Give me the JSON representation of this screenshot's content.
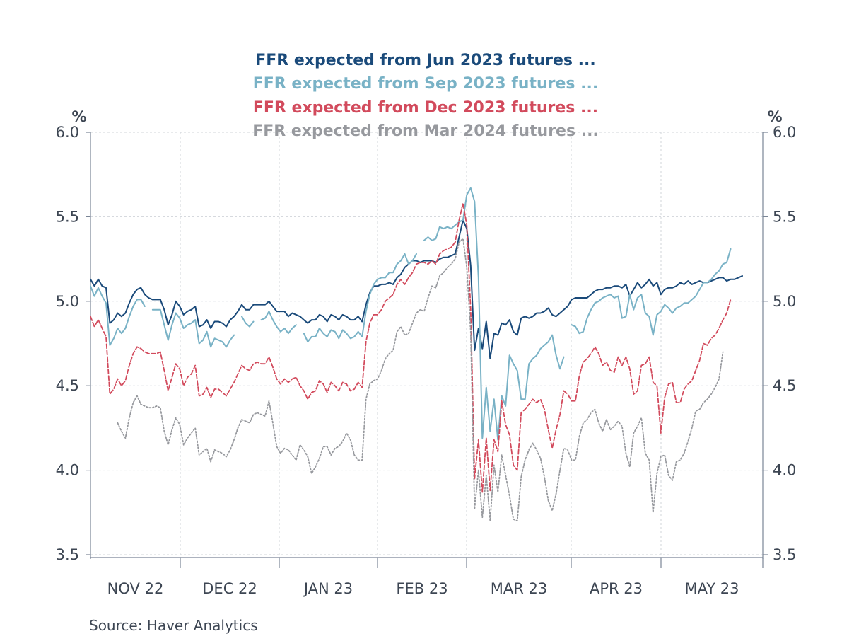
{
  "chart_data": {
    "type": "line",
    "y_unit_left": "%",
    "y_unit_right": "%",
    "ylim": [
      3.5,
      6.0
    ],
    "yticks": [
      "6.0",
      "5.5",
      "5.0",
      "4.5",
      "4.0",
      "3.5"
    ],
    "ytick_values": [
      6.0,
      5.5,
      5.0,
      4.5,
      4.0,
      3.5
    ],
    "grid": true,
    "legend_position": "top-center",
    "months": [
      "NOV 22",
      "DEC 22",
      "JAN 23",
      "FEB 23",
      "MAR 23",
      "APR 23",
      "MAY 23"
    ],
    "source": "Source:  Haver Analytics",
    "series": [
      {
        "name": "FFR expected from Jun 2023 futures ...",
        "color": "#1a4a7a",
        "dash": "solid",
        "values": [
          5.13,
          5.09,
          5.13,
          5.09,
          5.08,
          4.87,
          4.89,
          4.93,
          4.91,
          4.93,
          4.99,
          5.04,
          5.07,
          5.08,
          5.04,
          5.02,
          5.01,
          5.01,
          5.01,
          4.95,
          4.86,
          4.92,
          5.0,
          4.97,
          4.92,
          4.94,
          4.95,
          4.97,
          4.85,
          4.86,
          4.89,
          4.84,
          4.88,
          4.88,
          4.87,
          4.85,
          4.89,
          4.91,
          4.94,
          4.98,
          4.95,
          4.95,
          4.98,
          4.98,
          4.98,
          4.98,
          5.0,
          4.97,
          4.94,
          4.94,
          4.94,
          4.91,
          4.93,
          4.92,
          4.91,
          4.89,
          4.87,
          4.89,
          4.89,
          4.92,
          4.91,
          4.88,
          4.92,
          4.91,
          4.89,
          4.92,
          4.91,
          4.89,
          4.89,
          4.91,
          4.88,
          4.98,
          5.05,
          5.09,
          5.09,
          5.1,
          5.1,
          5.11,
          5.1,
          5.14,
          5.16,
          5.2,
          5.22,
          5.24,
          5.24,
          5.23,
          5.24,
          5.24,
          5.24,
          5.23,
          5.25,
          5.26,
          5.26,
          5.27,
          5.28,
          5.38,
          5.48,
          5.43,
          5.21,
          4.71,
          4.84,
          4.72,
          4.88,
          4.66,
          4.81,
          4.8,
          4.87,
          4.86,
          4.89,
          4.82,
          4.8,
          4.9,
          4.91,
          4.9,
          4.91,
          4.93,
          4.93,
          4.94,
          4.96,
          4.92,
          4.91,
          4.93,
          4.95,
          4.97,
          5.01,
          5.02,
          5.02,
          5.02,
          5.02,
          5.04,
          5.06,
          5.07,
          5.07,
          5.08,
          5.08,
          5.09,
          5.09,
          5.08,
          5.1,
          5.03,
          5.07,
          5.11,
          5.08,
          5.1,
          5.13,
          5.09,
          5.11,
          5.04,
          5.07,
          5.08,
          5.08,
          5.09,
          5.11,
          5.1,
          5.12,
          5.1,
          5.11,
          5.12,
          5.11,
          5.11,
          5.12,
          5.13,
          5.14,
          5.14,
          5.12,
          5.13,
          5.13,
          5.14,
          5.15
        ]
      },
      {
        "name": "FFR expected from Sep 2023 futures ...",
        "color": "#79b2c6",
        "dash": "solid",
        "values": [
          5.09,
          5.03,
          5.08,
          5.03,
          4.99,
          4.74,
          4.78,
          4.84,
          4.81,
          4.84,
          4.91,
          4.97,
          5.01,
          5.01,
          4.97,
          null,
          4.95,
          4.95,
          4.95,
          4.86,
          4.77,
          4.86,
          4.93,
          4.9,
          4.84,
          4.86,
          4.87,
          4.89,
          4.75,
          4.77,
          4.82,
          4.73,
          4.78,
          4.77,
          4.76,
          4.73,
          4.77,
          4.8,
          null,
          4.91,
          4.87,
          4.85,
          4.88,
          null,
          4.89,
          4.9,
          4.94,
          4.89,
          4.85,
          4.82,
          4.84,
          4.81,
          4.84,
          4.86,
          null,
          4.81,
          4.76,
          4.79,
          4.79,
          4.84,
          4.81,
          4.79,
          4.83,
          4.82,
          4.78,
          4.83,
          4.81,
          4.78,
          4.79,
          4.82,
          4.79,
          4.94,
          5.04,
          5.1,
          5.13,
          5.14,
          5.14,
          5.17,
          5.17,
          5.22,
          5.24,
          5.28,
          5.22,
          5.24,
          5.28,
          null,
          5.36,
          5.38,
          5.36,
          5.37,
          5.44,
          5.43,
          5.44,
          5.43,
          5.45,
          5.47,
          5.48,
          5.63,
          5.67,
          5.59,
          5.14,
          4.19,
          4.49,
          4.23,
          4.42,
          4.18,
          4.44,
          4.38,
          4.68,
          4.63,
          4.59,
          4.42,
          4.42,
          4.63,
          4.66,
          4.68,
          4.72,
          4.74,
          4.76,
          4.8,
          4.68,
          4.6,
          4.67,
          null,
          4.86,
          4.85,
          4.81,
          4.82,
          4.9,
          4.95,
          4.99,
          5.0,
          5.02,
          5.03,
          5.04,
          5.02,
          5.03,
          4.9,
          4.91,
          5.04,
          4.95,
          5.02,
          5.04,
          4.93,
          4.91,
          4.8,
          4.92,
          4.94,
          4.98,
          4.96,
          4.93,
          4.96,
          4.97,
          4.99,
          4.99,
          5.01,
          5.03,
          5.07,
          5.11,
          5.11,
          5.13,
          5.16,
          5.18,
          5.22,
          5.23,
          5.31
        ]
      },
      {
        "name": "FFR expected from Dec 2023 futures ...",
        "color": "#d24a5c",
        "dash": "dashed",
        "values": [
          4.91,
          4.85,
          4.89,
          4.84,
          4.79,
          4.45,
          4.48,
          4.54,
          4.5,
          4.53,
          4.62,
          4.69,
          4.73,
          4.72,
          4.7,
          4.69,
          4.69,
          4.69,
          4.7,
          4.59,
          4.47,
          4.55,
          4.63,
          4.6,
          4.5,
          4.55,
          4.57,
          4.62,
          4.44,
          4.45,
          4.49,
          4.43,
          4.48,
          4.48,
          4.46,
          4.44,
          4.48,
          4.52,
          4.57,
          4.62,
          4.6,
          4.59,
          4.63,
          4.64,
          4.63,
          4.63,
          4.67,
          4.61,
          4.54,
          4.51,
          4.54,
          4.52,
          4.54,
          4.55,
          4.5,
          4.47,
          4.42,
          4.46,
          4.47,
          4.53,
          4.51,
          4.46,
          4.52,
          4.5,
          4.47,
          4.52,
          4.51,
          4.47,
          4.48,
          4.52,
          4.49,
          4.76,
          4.87,
          4.92,
          4.92,
          4.95,
          5.0,
          5.02,
          5.04,
          5.1,
          5.13,
          5.1,
          5.14,
          5.17,
          5.22,
          5.23,
          5.23,
          5.22,
          5.24,
          5.22,
          5.28,
          5.3,
          5.31,
          5.32,
          5.35,
          5.48,
          5.58,
          5.45,
          4.95,
          3.95,
          4.18,
          3.87,
          4.19,
          3.88,
          4.18,
          4.11,
          4.41,
          4.27,
          4.21,
          4.03,
          4.0,
          4.34,
          4.36,
          4.39,
          4.42,
          4.4,
          4.42,
          4.36,
          4.24,
          4.13,
          4.24,
          4.33,
          4.47,
          4.45,
          4.41,
          4.41,
          4.56,
          4.64,
          4.66,
          4.69,
          4.73,
          4.69,
          4.62,
          4.64,
          4.59,
          4.58,
          4.67,
          4.62,
          4.67,
          4.6,
          4.45,
          4.47,
          4.62,
          4.63,
          4.67,
          4.52,
          4.5,
          4.22,
          4.43,
          4.51,
          4.52,
          4.4,
          4.4,
          4.48,
          4.51,
          4.53,
          4.59,
          4.65,
          4.75,
          4.74,
          4.78,
          4.8,
          4.84,
          4.89,
          4.93,
          5.01
        ]
      },
      {
        "name": "FFR expected from Mar 2024 futures ...",
        "color": "#97999e",
        "dash": "dotted",
        "values": [
          null,
          null,
          null,
          null,
          null,
          null,
          null,
          4.28,
          4.23,
          4.19,
          4.31,
          4.4,
          4.44,
          4.39,
          4.38,
          4.37,
          4.37,
          4.38,
          4.37,
          4.23,
          4.15,
          4.24,
          4.31,
          4.27,
          4.15,
          4.19,
          4.22,
          4.25,
          4.09,
          4.11,
          4.13,
          4.05,
          4.12,
          4.11,
          4.1,
          4.08,
          4.12,
          4.18,
          4.25,
          4.3,
          4.29,
          4.28,
          4.33,
          4.34,
          4.33,
          4.32,
          4.41,
          4.28,
          4.14,
          4.1,
          4.13,
          4.12,
          4.09,
          4.06,
          4.15,
          4.12,
          4.08,
          3.98,
          4.02,
          4.07,
          4.14,
          4.14,
          4.09,
          4.13,
          4.14,
          4.17,
          4.22,
          4.18,
          4.09,
          4.06,
          4.06,
          4.42,
          4.51,
          4.53,
          4.54,
          4.59,
          4.66,
          4.69,
          4.71,
          4.82,
          4.85,
          4.8,
          4.81,
          4.87,
          4.93,
          4.95,
          4.94,
          5.02,
          5.09,
          5.08,
          5.15,
          5.17,
          5.2,
          5.22,
          5.25,
          5.35,
          5.37,
          5.2,
          4.82,
          3.77,
          4.0,
          3.72,
          3.97,
          3.7,
          4.03,
          3.87,
          4.09,
          3.97,
          3.85,
          3.71,
          3.7,
          3.96,
          4.06,
          4.12,
          4.16,
          4.12,
          4.07,
          3.96,
          3.82,
          3.76,
          3.86,
          4.0,
          4.13,
          4.12,
          4.06,
          4.06,
          4.2,
          4.28,
          4.3,
          4.34,
          4.36,
          4.28,
          4.23,
          4.3,
          4.24,
          4.26,
          4.29,
          4.26,
          4.1,
          4.02,
          4.22,
          4.26,
          4.31,
          4.1,
          4.06,
          3.75,
          3.98,
          4.08,
          4.09,
          3.97,
          3.94,
          4.05,
          4.06,
          4.1,
          4.17,
          4.25,
          4.35,
          4.36,
          4.4,
          4.42,
          4.45,
          4.49,
          4.54,
          4.7
        ]
      }
    ]
  }
}
